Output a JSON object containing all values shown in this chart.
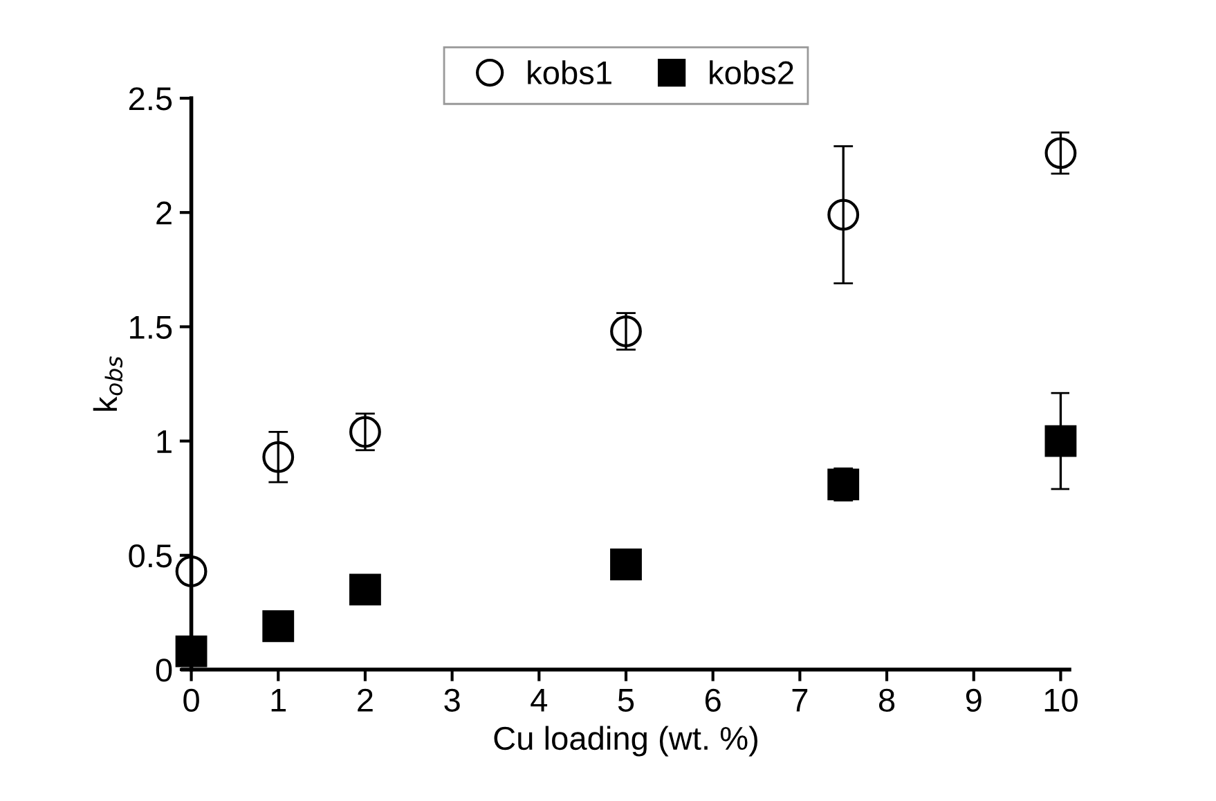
{
  "chart_data": {
    "type": "scatter",
    "xlabel": "Cu loading (wt. %)",
    "ylabel": "k$_{obs}$",
    "x": [
      0,
      1,
      2,
      5,
      7.5,
      10
    ],
    "series": [
      {
        "name": "kobs1",
        "color": "#000000",
        "marker": "circle",
        "values": [
          0.43,
          0.93,
          1.04,
          1.48,
          1.99,
          2.26
        ],
        "errors": [
          null,
          0.11,
          0.08,
          0.08,
          0.3,
          0.09
        ]
      },
      {
        "name": "kobs2",
        "color": "#000000",
        "marker": "square",
        "values": [
          0.08,
          0.19,
          0.35,
          0.46,
          0.81,
          1.0
        ],
        "errors": [
          null,
          null,
          null,
          null,
          0.07,
          0.21
        ]
      }
    ],
    "xlim": [
      -0.1,
      10.1
    ],
    "xticks": [
      0,
      1,
      2,
      3,
      4,
      5,
      6,
      7,
      8,
      9,
      10
    ],
    "ylim": [
      0,
      2.5
    ],
    "yticks": [
      0,
      0.5,
      1,
      1.5,
      2,
      2.5
    ],
    "grid": false,
    "legend": "top"
  }
}
